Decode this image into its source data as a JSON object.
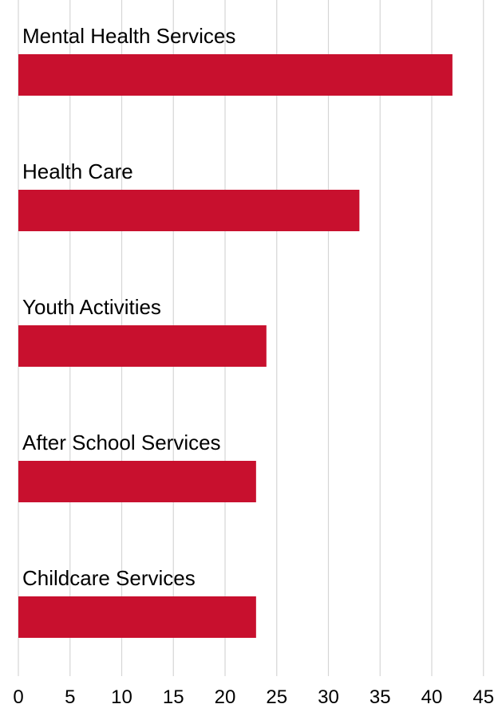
{
  "chart_data": {
    "type": "bar",
    "orientation": "horizontal",
    "title": "",
    "xlabel": "",
    "ylabel": "",
    "categories": [
      "Mental Health Services",
      "Health Care",
      "Youth Activities",
      "After School Services",
      "Childcare Services"
    ],
    "values": [
      42,
      33,
      24,
      23,
      23
    ],
    "xlim": [
      0,
      45
    ],
    "x_ticks": [
      "0",
      "5",
      "10",
      "15",
      "20",
      "25",
      "30",
      "35",
      "40",
      "45"
    ],
    "grid": "vertical",
    "legend": "none",
    "bar_color": "#c8102e"
  }
}
